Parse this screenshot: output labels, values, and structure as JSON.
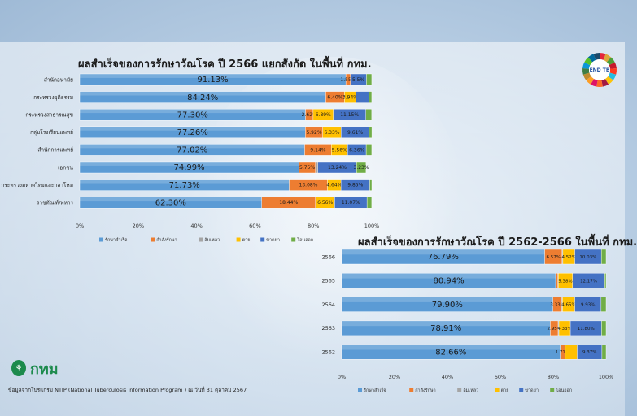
{
  "header": {
    "logo_text": "END TB",
    "org_mark_text": "กทม",
    "source_note": "ข้อมูลจากโปรแกรม NTIP (National Tuberculosis Information Program ) ณ  วันที่ 31 ตุลาคม 2567"
  },
  "colors": {
    "treated": "#5b9bd5",
    "on_treatment": "#ed7d31",
    "lost": "#a5a5a5",
    "died": "#ffc000",
    "failed": "#4472c4",
    "transferred": "#70ad47"
  },
  "chart_data": [
    {
      "type": "bar",
      "orientation": "horizontal",
      "stacked": true,
      "title": "ผลสำเร็จของการรักษาวัณโรค ปี 2566 แยกสังกัด ในพื้นที่ กทม.",
      "categories": [
        "สำนักอนามัย",
        "กระทรวงยุติธรรม",
        "กระทรวงสาธารณสุข",
        "กลุ่มโรงเรียนแพทย์",
        "สำนักการแพทย์",
        "เอกชน",
        "กระทรวงมหาดไทยและกลาโหม",
        "ราชทัณฑ์/ทหาร"
      ],
      "series": [
        {
          "name": "รักษาสำเร็จ",
          "values": [
            91.13,
            84.24,
            77.3,
            77.26,
            77.02,
            74.99,
            71.73,
            62.3
          ]
        },
        {
          "name": "กำลังรักษา",
          "values": [
            1.55,
            6.4,
            2.62,
            5.92,
            9.14,
            5.75,
            13.08,
            18.44
          ]
        },
        {
          "name": "ล้มเหลว",
          "values": [
            0,
            0,
            0,
            0,
            0,
            0.8,
            0,
            0
          ]
        },
        {
          "name": "ตาย",
          "values": [
            0,
            3.94,
            6.89,
            6.33,
            5.56,
            0,
            4.64,
            6.56
          ]
        },
        {
          "name": "ขาดยา",
          "values": [
            5.5,
            4.5,
            11.15,
            9.61,
            6.36,
            13.24,
            9.85,
            11.07
          ]
        },
        {
          "name": "โอนออก",
          "values": [
            1.8,
            0.9,
            2.0,
            0.9,
            1.9,
            3.23,
            0.7,
            1.6
          ]
        }
      ],
      "labels": [
        [
          "91.13%",
          "1.55%",
          "",
          "",
          "5.5%",
          ""
        ],
        [
          "84.24%",
          "6.40%",
          "",
          "3.94%",
          "",
          ""
        ],
        [
          "77.30%",
          "2.62%",
          "",
          "6.89%",
          "11.15%",
          ""
        ],
        [
          "77.26%",
          "5.92%",
          "",
          "6.33%",
          "9.61%",
          ""
        ],
        [
          "77.02%",
          "9.14%",
          "",
          "5.56%",
          "6.36%",
          ""
        ],
        [
          "74.99%",
          "5.75%",
          "",
          "",
          "13.24%",
          "3.23%"
        ],
        [
          "71.73%",
          "13.08%",
          "",
          "4.64%",
          "9.85%",
          ""
        ],
        [
          "62.30%",
          "18.44%",
          "",
          "6.56%",
          "11.07%",
          ""
        ]
      ],
      "x_ticks": [
        "0%",
        "20%",
        "40%",
        "60%",
        "80%",
        "100%"
      ],
      "xlim": [
        0,
        100
      ],
      "legend": [
        "รักษาสำเร็จ",
        "กำลังรักษา",
        "ล้มเหลว",
        "ตาย",
        "ขาดยา",
        "โอนออก"
      ],
      "legend_position": "bottom"
    },
    {
      "type": "bar",
      "orientation": "horizontal",
      "stacked": true,
      "title": "ผลสำเร็จของการรักษาวัณโรค ปี 2562-2566 ในพื้นที่ กทม.",
      "categories": [
        "2566",
        "2565",
        "2564",
        "2563",
        "2562"
      ],
      "series": [
        {
          "name": "รักษาสำเร็จ",
          "values": [
            76.79,
            80.94,
            79.9,
            78.91,
            82.66
          ]
        },
        {
          "name": "กำลังรักษา",
          "values": [
            6.57,
            0.8,
            3.33,
            2.95,
            1.71
          ]
        },
        {
          "name": "ล้มเหลว",
          "values": [
            0.3,
            0.2,
            0.3,
            0.3,
            0.2
          ]
        },
        {
          "name": "ตาย",
          "values": [
            4.52,
            5.38,
            4.65,
            4.33,
            4.5
          ]
        },
        {
          "name": "ขาดยา",
          "values": [
            10.03,
            12.17,
            9.93,
            11.8,
            9.37
          ]
        },
        {
          "name": "โอนออก",
          "values": [
            1.79,
            0.51,
            1.89,
            1.71,
            1.56
          ]
        }
      ],
      "labels": [
        [
          "76.79%",
          "6.57%",
          "",
          "4.52%",
          "10.03%",
          ""
        ],
        [
          "80.94%",
          "",
          "",
          "5.38%",
          "12.17%",
          ""
        ],
        [
          "79.90%",
          "3.33%",
          "",
          "4.65%",
          "9.93%",
          ""
        ],
        [
          "78.91%",
          "2.95%",
          "",
          "4.33%",
          "11.80%",
          ""
        ],
        [
          "82.66%",
          "1.71%",
          "",
          "",
          "9.37%",
          ""
        ]
      ],
      "x_ticks": [
        "0%",
        "20%",
        "40%",
        "60%",
        "80%",
        "100%"
      ],
      "xlim": [
        0,
        100
      ],
      "legend": [
        "รักษาสำเร็จ",
        "กำลังรักษา",
        "ล้มเหลว",
        "ตาย",
        "ขาดยา",
        "โอนออก"
      ],
      "legend_position": "bottom"
    }
  ]
}
